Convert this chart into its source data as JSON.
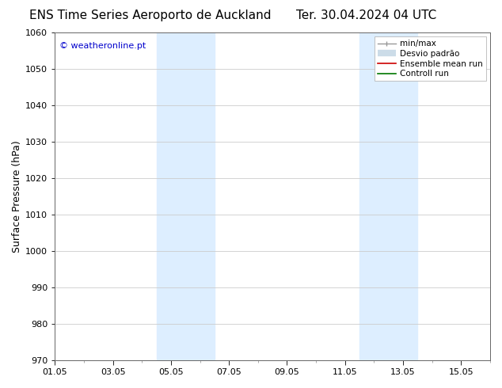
{
  "title_left": "ENS Time Series Aeroporto de Auckland",
  "title_right": "Ter. 30.04.2024 04 UTC",
  "ylabel": "Surface Pressure (hPa)",
  "ylim": [
    970,
    1060
  ],
  "yticks": [
    970,
    980,
    990,
    1000,
    1010,
    1020,
    1030,
    1040,
    1050,
    1060
  ],
  "total_days": 15,
  "xtick_labels": [
    "01.05",
    "03.05",
    "05.05",
    "07.05",
    "09.05",
    "11.05",
    "13.05",
    "15.05"
  ],
  "xtick_positions_days": [
    0,
    2,
    4,
    6,
    8,
    10,
    12,
    14
  ],
  "shaded_bands": [
    {
      "start_day": 3.5,
      "end_day": 5.5
    },
    {
      "start_day": 10.5,
      "end_day": 12.5
    }
  ],
  "shaded_color": "#ddeeff",
  "watermark_text": "© weatheronline.pt",
  "watermark_color": "#0000cc",
  "legend_label_minmax": "min/max",
  "legend_label_desvio": "Desvio padrão",
  "legend_label_ensemble": "Ensemble mean run",
  "legend_label_controll": "Controll run",
  "legend_color_minmax": "#999999",
  "legend_color_desvio": "#ccdce8",
  "legend_color_ensemble": "#cc0000",
  "legend_color_controll": "#007700",
  "bg_color": "#ffffff",
  "grid_color": "#cccccc",
  "title_fontsize": 11,
  "tick_fontsize": 8,
  "ylabel_fontsize": 9,
  "watermark_fontsize": 8,
  "legend_fontsize": 7.5
}
